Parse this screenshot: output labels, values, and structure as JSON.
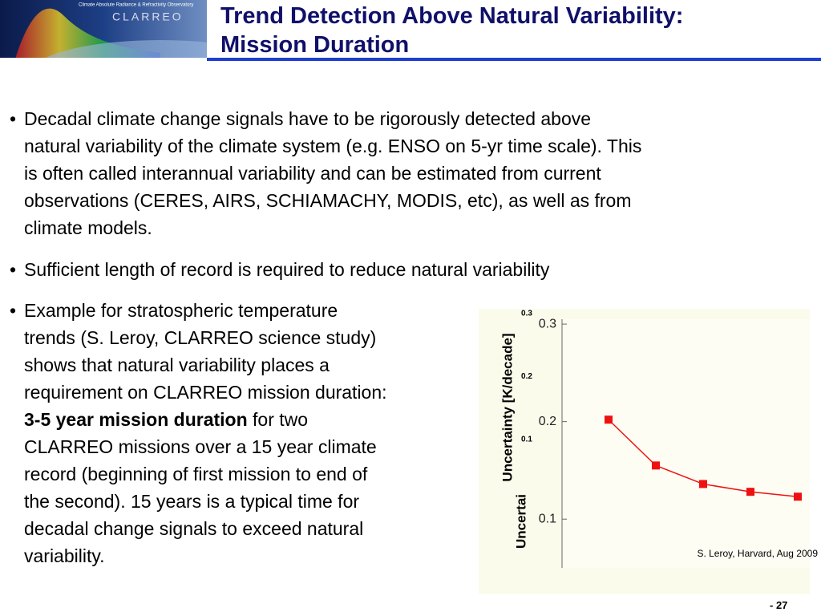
{
  "header": {
    "logo_caption": "Climate Absolute Radiance & Refractivity Observatory",
    "logo_name": "CLARREO",
    "title": [
      "Trend Detection Above Natural Variability:",
      "Mission Duration"
    ]
  },
  "bullets": [
    {
      "lines": [
        "Decadal climate change signals have to be rigorously detected above",
        "natural variability of the climate system (e.g. ENSO on 5-yr time scale).  This",
        "is often called interannual variability and can be estimated from current",
        "observations (CERES, AIRS, SCHIAMACHY, MODIS, etc), as well as from",
        "climate models."
      ]
    },
    {
      "lines": [
        "Sufficient length of record is required to reduce natural variability"
      ]
    },
    {
      "lines": [
        "Example for stratospheric temperature",
        "trends (S. Leroy, CLARREO science study)",
        "shows that natural variability places a",
        "requirement on CLARREO mission duration:"
      ],
      "bold": "3-5 year mission duration",
      "after_bold": " for two",
      "more_lines": [
        "CLARREO missions over a 15 year climate",
        "record (beginning of first mission to end of",
        "the second).  15 years is a typical time for",
        "decadal change signals to exceed natural",
        "variability."
      ]
    }
  ],
  "chart_data": {
    "type": "line",
    "y_label": "Uncertainty [K/decade]",
    "stray_y_label": "Uncertai",
    "stray_ticks": [
      "0.3",
      "0.2",
      "0.1"
    ],
    "source": "S. Leroy, Harvard, Aug 2009",
    "categories": [
      null,
      null,
      null,
      null,
      null
    ],
    "values": [
      0.202,
      0.155,
      0.136,
      0.128,
      0.123
    ],
    "color": "#ee1111",
    "ylim": [
      0.05,
      0.305
    ],
    "yticks": [
      0.1,
      0.2,
      0.3
    ]
  },
  "footer": {
    "page": "- 27"
  }
}
